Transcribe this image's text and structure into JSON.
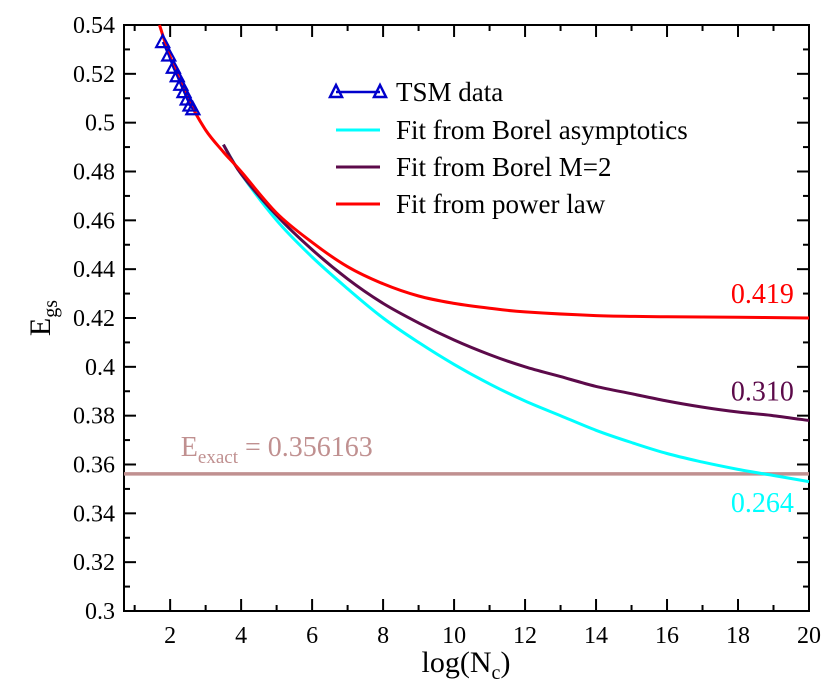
{
  "chart_data": {
    "type": "line",
    "xlabel": "log(N_c)",
    "xlabel_main": "log(N",
    "xlabel_sub": "c",
    "xlabel_close": ")",
    "ylabel": "E_gs",
    "ylabel_main": "E",
    "ylabel_sub": "gs",
    "xlim": [
      0.7,
      20
    ],
    "ylim": [
      0.3,
      0.54
    ],
    "x_ticks": [
      2,
      4,
      6,
      8,
      10,
      12,
      14,
      16,
      18,
      20
    ],
    "x_tick_labels": [
      "2",
      "4",
      "6",
      "8",
      "10",
      "12",
      "14",
      "16",
      "18",
      "20"
    ],
    "y_ticks": [
      0.3,
      0.32,
      0.34,
      0.36,
      0.38,
      0.4,
      0.42,
      0.44,
      0.46,
      0.48,
      0.5,
      0.52,
      0.54
    ],
    "y_tick_labels": [
      "0.3",
      "0.32",
      "0.34",
      "0.36",
      "0.38",
      "0.4",
      "0.42",
      "0.44",
      "0.46",
      "0.48",
      "0.5",
      "0.52",
      "0.54"
    ],
    "series": [
      {
        "name": "TSM data",
        "kind": "markers",
        "color": "#0000cc",
        "x": [
          1.79,
          1.96,
          2.09,
          2.2,
          2.3,
          2.39,
          2.48,
          2.56,
          2.64
        ],
        "y": [
          0.533,
          0.5275,
          0.5225,
          0.519,
          0.5155,
          0.5125,
          0.5095,
          0.507,
          0.5055
        ]
      },
      {
        "name": "Fit from Borel asymptotics",
        "kind": "line",
        "color": "#00ffff",
        "x": [
          3.5,
          4,
          5,
          6,
          7,
          8,
          9,
          10,
          11,
          12,
          13,
          14,
          15,
          16,
          17,
          18,
          19,
          20
        ],
        "y": [
          0.491,
          0.479,
          0.46,
          0.445,
          0.432,
          0.42,
          0.41,
          0.401,
          0.393,
          0.386,
          0.38,
          0.374,
          0.369,
          0.3645,
          0.361,
          0.358,
          0.3555,
          0.353
        ]
      },
      {
        "name": "Fit from Borel M=2",
        "kind": "line",
        "color": "#5c0a4a",
        "x": [
          3.5,
          4,
          5,
          6,
          7,
          8,
          9,
          10,
          11,
          12,
          13,
          14,
          15,
          16,
          17,
          18,
          19,
          20
        ],
        "y": [
          0.491,
          0.479,
          0.462,
          0.448,
          0.436,
          0.426,
          0.418,
          0.411,
          0.405,
          0.4,
          0.396,
          0.392,
          0.389,
          0.386,
          0.3835,
          0.3815,
          0.38,
          0.378
        ]
      },
      {
        "name": "Fit from power law",
        "kind": "line",
        "color": "#ff0000",
        "x": [
          1.7,
          2,
          2.5,
          3,
          3.5,
          4,
          5,
          6,
          7,
          8,
          9,
          10,
          11,
          12,
          14,
          16,
          18,
          20
        ],
        "y": [
          0.54,
          0.527,
          0.51,
          0.497,
          0.488,
          0.48,
          0.463,
          0.451,
          0.441,
          0.434,
          0.429,
          0.426,
          0.424,
          0.4225,
          0.421,
          0.4205,
          0.4203,
          0.42
        ]
      },
      {
        "name": "E_exact",
        "kind": "hline",
        "color": "#c09090",
        "y": 0.356163
      }
    ],
    "legend": {
      "position": "top-center",
      "entries": [
        "TSM data",
        "Fit from Borel asymptotics",
        "Fit from Borel M=2",
        "Fit from power law"
      ]
    },
    "annotations": [
      {
        "text": "0.419",
        "color": "#ff0000",
        "x": 17.8,
        "y": 0.4262
      },
      {
        "text": "0.310",
        "color": "#5c0a4a",
        "x": 17.8,
        "y": 0.3862
      },
      {
        "text": "0.264",
        "color": "#00ffff",
        "x": 17.8,
        "y": 0.3405
      }
    ],
    "exact_label": {
      "main": "E",
      "sub": "exact",
      "rest": " = 0.356163",
      "color": "#c09090",
      "x": 2.3,
      "y": 0.3635
    }
  }
}
